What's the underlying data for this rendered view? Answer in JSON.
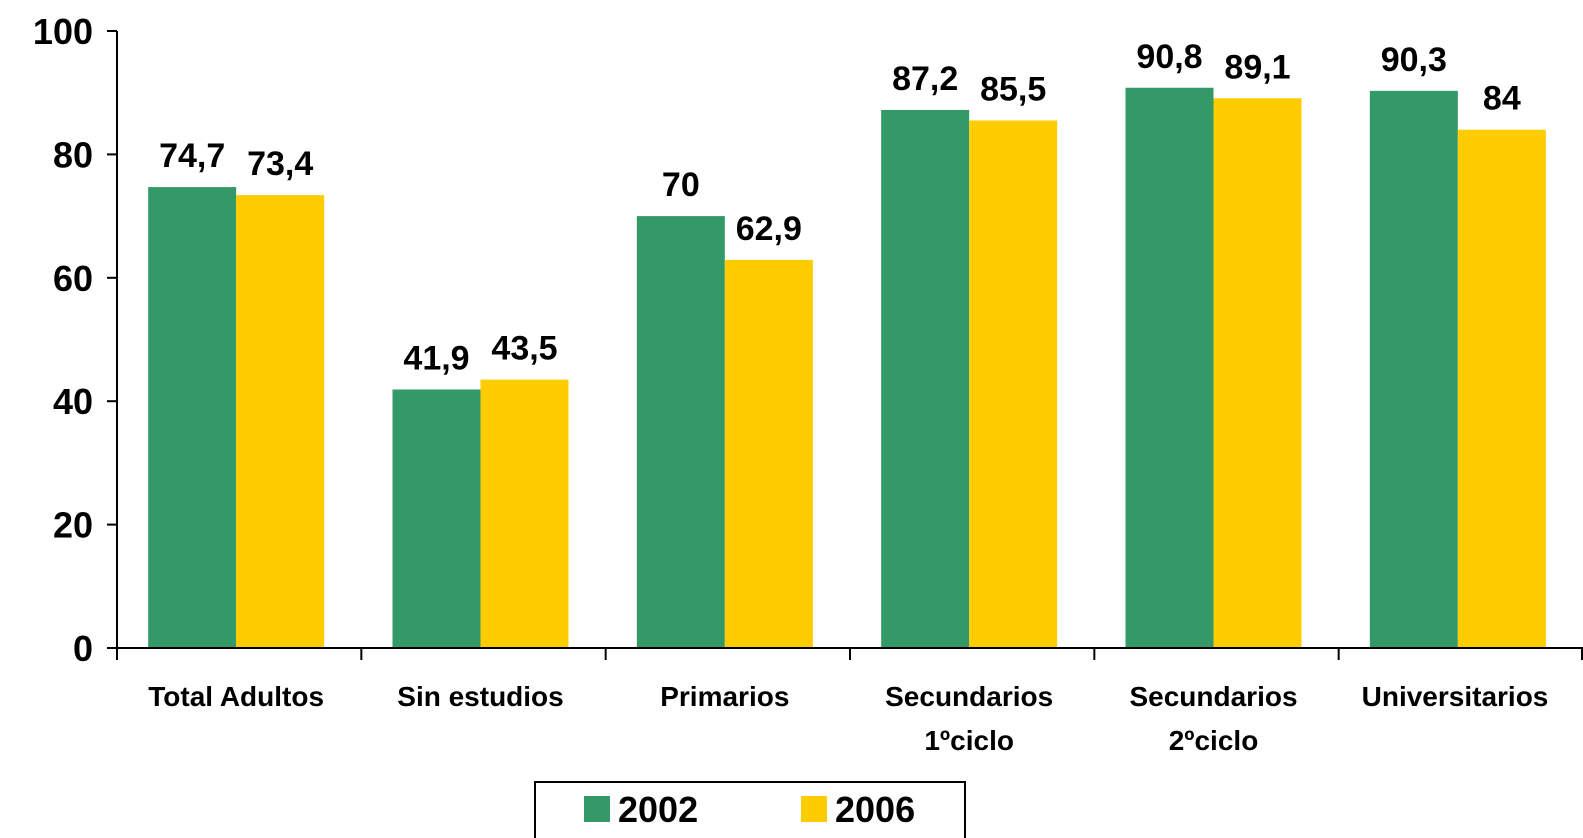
{
  "chart_data": {
    "type": "bar",
    "categories": [
      [
        "Total Adultos"
      ],
      [
        "Sin estudios"
      ],
      [
        "Primarios"
      ],
      [
        "Secundarios",
        "1ºciclo"
      ],
      [
        "Secundarios",
        "2ºciclo"
      ],
      [
        "Universitarios"
      ]
    ],
    "series": [
      {
        "name": "2002",
        "color": "#339966",
        "values": [
          74.7,
          41.9,
          70,
          87.2,
          90.8,
          90.3
        ],
        "labels": [
          "74,7",
          "41,9",
          "70",
          "87,2",
          "90,8",
          "90,3"
        ]
      },
      {
        "name": "2006",
        "color": "#FFCC00",
        "values": [
          73.4,
          43.5,
          62.9,
          85.5,
          89.1,
          84
        ],
        "labels": [
          "73,4",
          "43,5",
          "62,9",
          "85,5",
          "89,1",
          "84"
        ]
      }
    ],
    "y_ticks": [
      "0",
      "20",
      "40",
      "60",
      "80",
      "100"
    ],
    "ylim": [
      0,
      100
    ],
    "grid": false,
    "legend_position": "bottom-center",
    "title": "",
    "xlabel": "",
    "ylabel": ""
  }
}
